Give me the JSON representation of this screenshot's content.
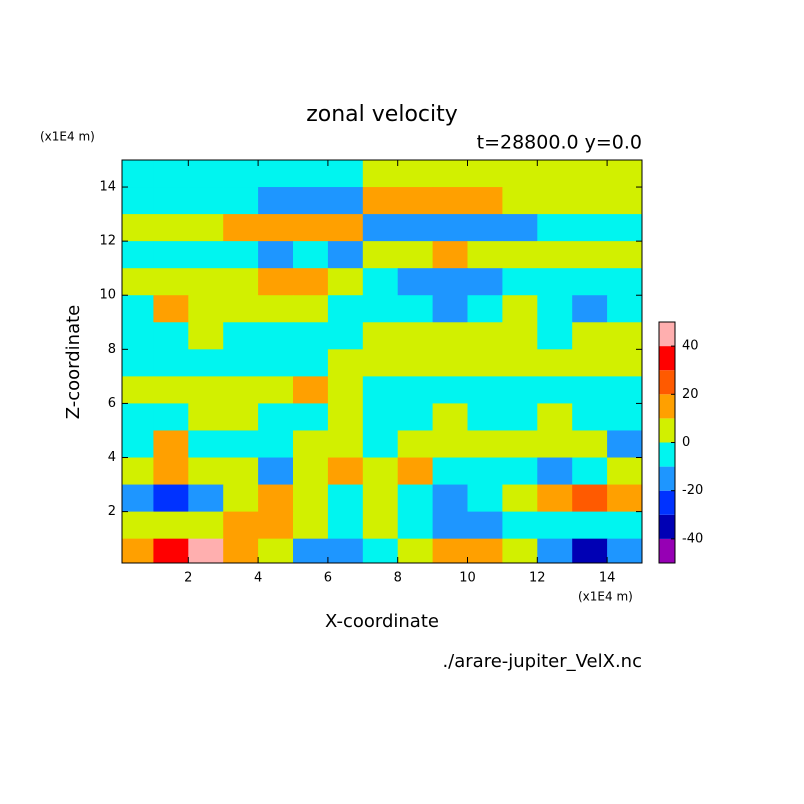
{
  "chart_data": {
    "type": "contour",
    "title": "zonal velocity",
    "subtitle": "t=28800.0 y=0.0",
    "x_label": "X-coordinate",
    "y_label": "Z-coordinate",
    "x_unit": "(x1E4 m)",
    "y_unit": "(x1E4 m)",
    "footnote": "./arare-jupiter_VelX.nc",
    "xlim": [
      0.1,
      15
    ],
    "ylim": [
      0.1,
      15
    ],
    "xticks": [
      2,
      4,
      6,
      8,
      10,
      12,
      14
    ],
    "yticks": [
      2,
      4,
      6,
      8,
      10,
      12,
      14
    ],
    "x": [
      0.5,
      1.5,
      2.5,
      3.5,
      4.5,
      5.5,
      6.5,
      7.5,
      8.5,
      9.5,
      10.5,
      11.5,
      12.5,
      13.5,
      14.5
    ],
    "y": [
      14.5,
      13.5,
      12.5,
      11.5,
      10.5,
      9.5,
      8.5,
      7.5,
      6.5,
      5.5,
      4.5,
      3.5,
      2.5,
      1.5,
      0.5
    ],
    "z": [
      [
        -5,
        -5,
        -5,
        -5,
        -5,
        -5,
        -5,
        5,
        5,
        5,
        5,
        5,
        5,
        5,
        5
      ],
      [
        -5,
        -5,
        -5,
        -5,
        -15,
        -15,
        -15,
        15,
        15,
        15,
        15,
        5,
        5,
        5,
        5
      ],
      [
        5,
        5,
        5,
        15,
        15,
        15,
        15,
        -15,
        -15,
        -15,
        -15,
        -15,
        -5,
        -5,
        -5
      ],
      [
        -5,
        -5,
        -5,
        -5,
        -15,
        -5,
        -15,
        5,
        5,
        15,
        5,
        5,
        5,
        5,
        5
      ],
      [
        5,
        5,
        5,
        5,
        15,
        15,
        5,
        -5,
        -15,
        -15,
        -15,
        -5,
        -5,
        -5,
        -5
      ],
      [
        -5,
        15,
        5,
        5,
        5,
        5,
        -5,
        -5,
        -5,
        -15,
        -5,
        5,
        -5,
        -15,
        -5
      ],
      [
        -5,
        -5,
        5,
        -5,
        -5,
        -5,
        -5,
        5,
        5,
        5,
        5,
        5,
        -5,
        5,
        5
      ],
      [
        -5,
        -5,
        -5,
        -5,
        -5,
        -5,
        5,
        5,
        5,
        5,
        5,
        5,
        5,
        5,
        5
      ],
      [
        5,
        5,
        5,
        5,
        5,
        15,
        5,
        -5,
        -5,
        -5,
        -5,
        -5,
        -5,
        -5,
        -5
      ],
      [
        -5,
        -5,
        5,
        5,
        -5,
        -5,
        5,
        -5,
        -5,
        5,
        -5,
        -5,
        5,
        -5,
        -5
      ],
      [
        -5,
        15,
        -5,
        -5,
        -5,
        5,
        5,
        -5,
        5,
        5,
        5,
        5,
        5,
        5,
        -15
      ],
      [
        5,
        15,
        5,
        5,
        -15,
        5,
        15,
        5,
        15,
        -5,
        -5,
        -5,
        -15,
        -5,
        5
      ],
      [
        -15,
        -25,
        -15,
        5,
        15,
        5,
        -5,
        5,
        -5,
        -15,
        -5,
        5,
        15,
        25,
        15
      ],
      [
        5,
        5,
        5,
        15,
        15,
        5,
        -5,
        5,
        -5,
        -15,
        -15,
        -5,
        -5,
        -5,
        -5
      ],
      [
        15,
        35,
        45,
        15,
        5,
        -15,
        -15,
        -5,
        5,
        15,
        15,
        5,
        -15,
        -35,
        -15
      ]
    ],
    "levels": [
      -50,
      -40,
      -30,
      -20,
      -10,
      0,
      10,
      20,
      30,
      40,
      50
    ],
    "colors": [
      "#9600b4",
      "#0000b4",
      "#0032ff",
      "#1e96ff",
      "#00f5f0",
      "#d2f000",
      "#ffa000",
      "#ff5a00",
      "#ff0000",
      "#ffafaf"
    ],
    "colorbar_ticks": [
      -40,
      -20,
      0,
      20,
      40
    ]
  }
}
